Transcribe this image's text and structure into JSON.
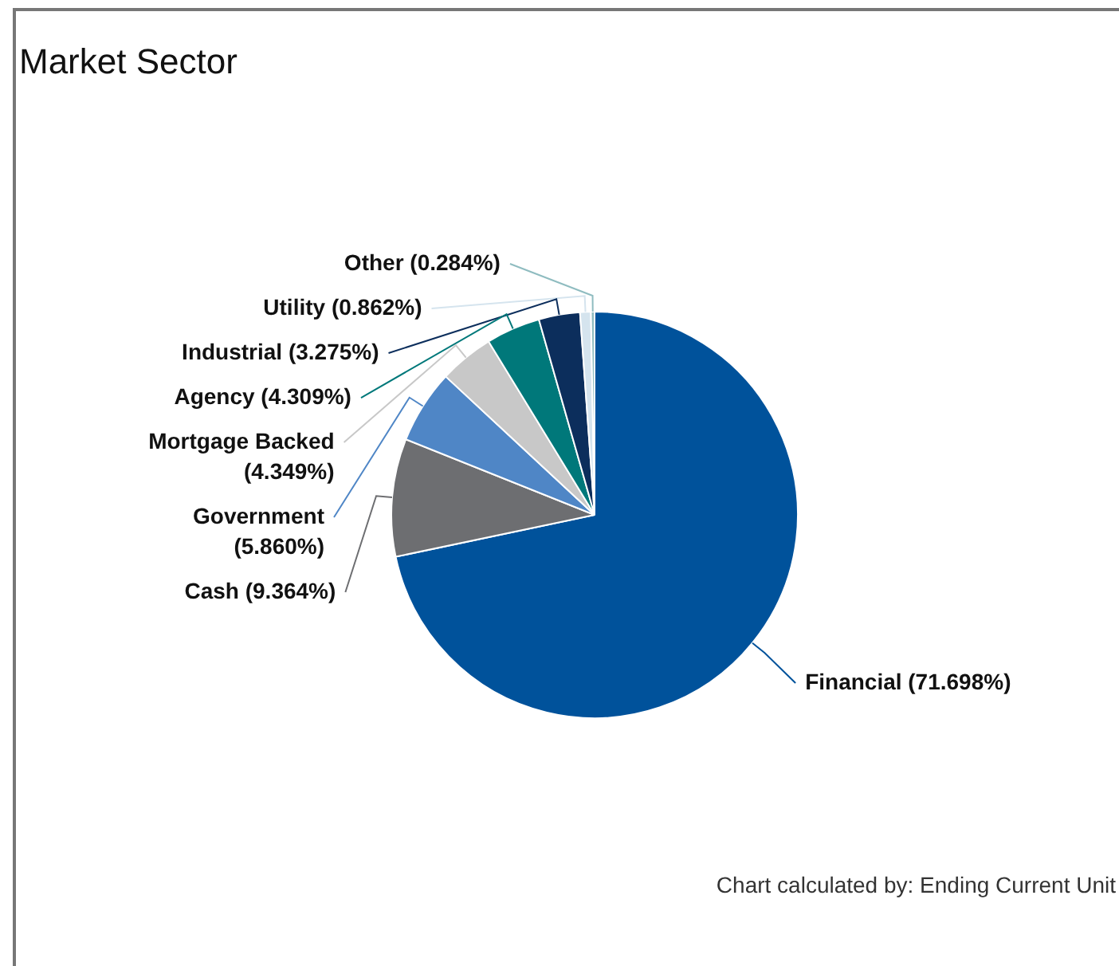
{
  "chart_data": {
    "type": "pie",
    "title": "Market Sector",
    "categories": [
      "Financial",
      "Cash",
      "Government",
      "Mortgage Backed",
      "Agency",
      "Industrial",
      "Utility",
      "Other"
    ],
    "values": [
      71.698,
      9.364,
      5.86,
      4.349,
      4.309,
      3.275,
      0.862,
      0.284
    ],
    "colors": [
      "#00529b",
      "#6d6e71",
      "#4f86c6",
      "#c8c8c8",
      "#00787a",
      "#0c2e5c",
      "#d5e4ee",
      "#8fbcc0"
    ],
    "value_labels": [
      "(71.698%)",
      "(9.364%)",
      "(5.860%)",
      "(4.349%)",
      "(4.309%)",
      "(3.275%)",
      "(0.862%)",
      "(0.284%)"
    ],
    "annotations": [
      "Chart calculated by: Ending Current Unit"
    ]
  }
}
